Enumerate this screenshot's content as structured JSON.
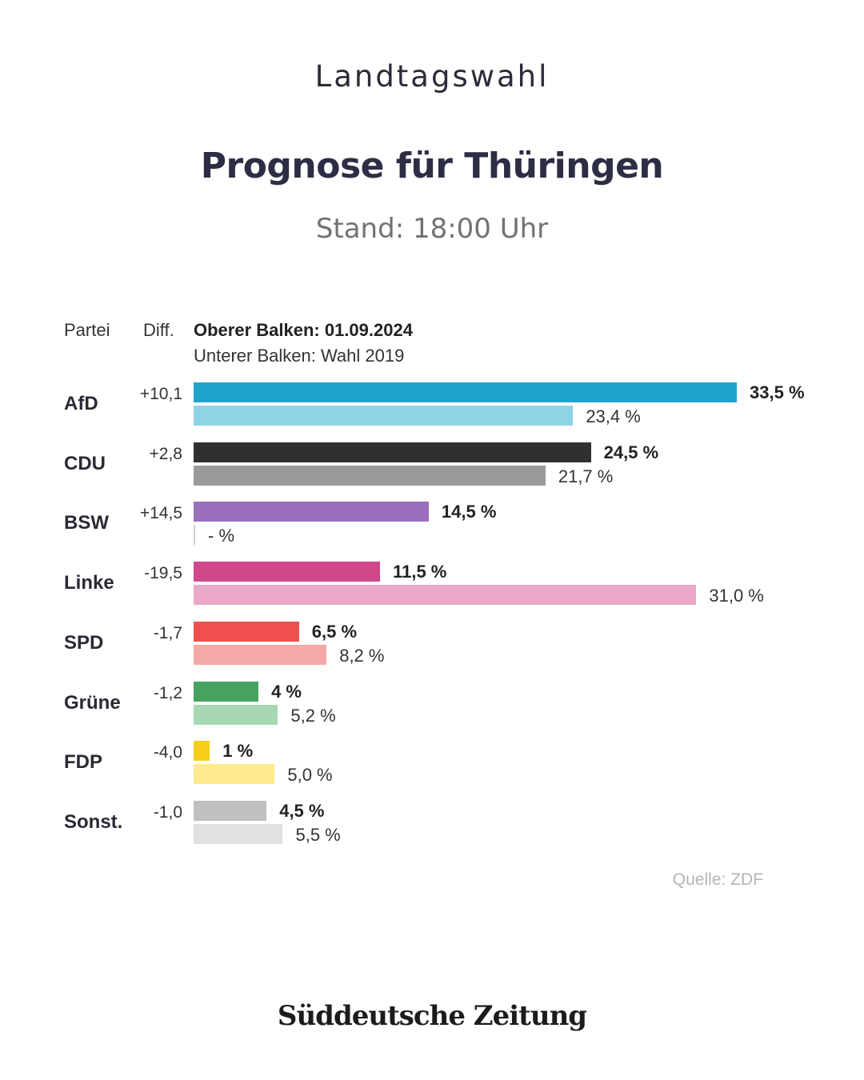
{
  "header": {
    "kicker": "Landtagswahl",
    "title": "Prognose für Thüringen",
    "subtitle": "Stand: 18:00 Uhr"
  },
  "table_header": {
    "party": "Partei",
    "diff": "Diff.",
    "upper_bar": "Oberer Balken: 01.09.2024",
    "lower_bar": "Unterer Balken: Wahl 2019"
  },
  "chart_data": {
    "type": "bar",
    "title": "Prognose für Thüringen",
    "series": [
      {
        "name": "Oberer Balken: 01.09.2024",
        "values": [
          33.5,
          24.5,
          14.5,
          11.5,
          6.5,
          4,
          1,
          4.5
        ]
      },
      {
        "name": "Unterer Balken: Wahl 2019",
        "values": [
          23.4,
          21.7,
          null,
          31.0,
          8.2,
          5.2,
          5.0,
          5.5
        ]
      }
    ],
    "categories": [
      "AfD",
      "CDU",
      "BSW",
      "Linke",
      "SPD",
      "Grüne",
      "FDP",
      "Sonst."
    ],
    "parties": [
      {
        "name": "AfD",
        "diff": "+10,1",
        "current": 33.5,
        "current_label": "33,5 %",
        "previous": 23.4,
        "previous_label": "23,4 %",
        "color": "#1fa3cb",
        "color_prev": "#8fd3e6"
      },
      {
        "name": "CDU",
        "diff": "+2,8",
        "current": 24.5,
        "current_label": "24,5 %",
        "previous": 21.7,
        "previous_label": "21,7 %",
        "color": "#303030",
        "color_prev": "#9a9a9a"
      },
      {
        "name": "BSW",
        "diff": "+14,5",
        "current": 14.5,
        "current_label": "14,5 %",
        "previous": null,
        "previous_label": "- %",
        "color": "#9a6fbc",
        "color_prev": "#d0d0d0"
      },
      {
        "name": "Linke",
        "diff": "-19,5",
        "current": 11.5,
        "current_label": "11,5 %",
        "previous": 31.0,
        "previous_label": "31,0 %",
        "color": "#d1488a",
        "color_prev": "#eba7c8"
      },
      {
        "name": "SPD",
        "diff": "-1,7",
        "current": 6.5,
        "current_label": "6,5 %",
        "previous": 8.2,
        "previous_label": "8,2 %",
        "color": "#ef4f4f",
        "color_prev": "#f6a8a6"
      },
      {
        "name": "Grüne",
        "diff": "-1,2",
        "current": 4,
        "current_label": "4 %",
        "previous": 5.2,
        "previous_label": "5,2 %",
        "color": "#45a35f",
        "color_prev": "#a8d8b3"
      },
      {
        "name": "FDP",
        "diff": "-4,0",
        "current": 1,
        "current_label": "1 %",
        "previous": 5.0,
        "previous_label": "5,0 %",
        "color": "#f8cd1b",
        "color_prev": "#fde98e"
      },
      {
        "name": "Sonst.",
        "diff": "-1,0",
        "current": 4.5,
        "current_label": "4,5 %",
        "previous": 5.5,
        "previous_label": "5,5 %",
        "color": "#c0c0c0",
        "color_prev": "#e1e1e1"
      }
    ]
  },
  "footer": {
    "source": "Quelle: ZDF",
    "brand": "Süddeutsche Zeitung"
  }
}
